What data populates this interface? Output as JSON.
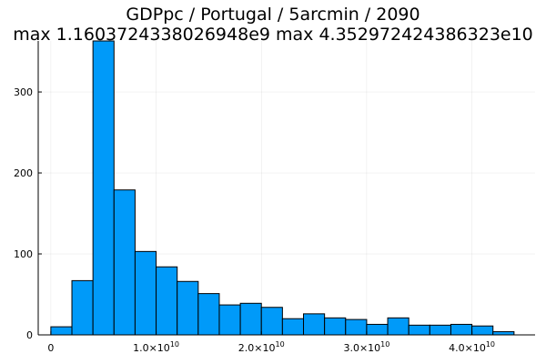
{
  "chart_data": {
    "type": "bar",
    "title_lines": [
      "GDPpc / Portugal / 5arcmin / 2090",
      "max 1.1603724338026948e9  max 4.352972424386323e10"
    ],
    "xlabel": "",
    "ylabel": "",
    "bin_width": 2000000000,
    "bin_edges_start": 0,
    "counts": [
      10,
      67,
      363,
      179,
      103,
      84,
      66,
      51,
      37,
      39,
      34,
      20,
      26,
      21,
      19,
      13,
      21,
      12,
      12,
      13,
      11,
      4
    ],
    "xlim": [
      -1200000000,
      46000000000
    ],
    "ylim": [
      0,
      363
    ],
    "x_ticks": [
      {
        "value": 0,
        "base": "0",
        "exp": ""
      },
      {
        "value": 10000000000,
        "base": "1.0×10",
        "exp": "10"
      },
      {
        "value": 20000000000,
        "base": "2.0×10",
        "exp": "10"
      },
      {
        "value": 30000000000,
        "base": "3.0×10",
        "exp": "10"
      },
      {
        "value": 40000000000,
        "base": "4.0×10",
        "exp": "10"
      }
    ],
    "y_ticks": [
      0,
      100,
      200,
      300
    ],
    "grid": true,
    "legend": "none",
    "bar_color": "#009af9",
    "bar_edge_color": "#000000"
  }
}
